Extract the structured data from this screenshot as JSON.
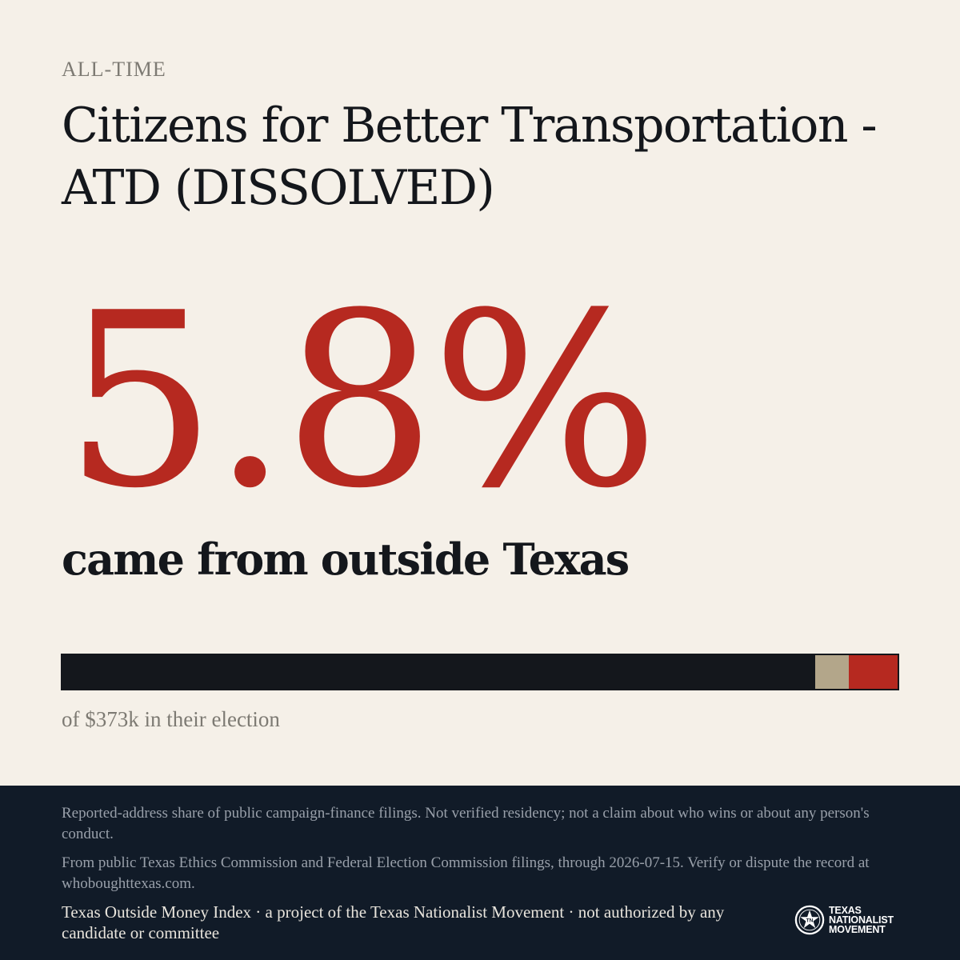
{
  "header": {
    "kicker": "ALL-TIME",
    "title": "Citizens for Better Transportation - ATD (DISSOLVED)"
  },
  "stat": {
    "value": "5.8%",
    "subtitle": "came from outside Texas"
  },
  "bar": {
    "segments": [
      {
        "share": 0.901,
        "color": "#14171c"
      },
      {
        "share": 0.041,
        "color": "#b3a68a"
      },
      {
        "share": 0.058,
        "color": "#b62920"
      }
    ]
  },
  "caption": "of $373k in their election",
  "footer": {
    "disclaimer": "Reported-address share of public campaign-finance filings. Not verified residency; not a claim about who wins or about any person's conduct.",
    "source": "From public Texas Ethics Commission and Federal Election Commission filings, through 2026-07-15. Verify or dispute the record at whoboughttexas.com.",
    "credit": "Texas Outside Money Index · a project of the Texas Nationalist Movement · not authorized by any candidate or committee",
    "logo": {
      "line1": "TEXAS",
      "line2": "NATIONALIST",
      "line3": "MOVEMENT",
      "icon": "star-seal-icon"
    }
  },
  "colors": {
    "background": "#f5f0e8",
    "accent": "#b62920",
    "ink": "#14171c",
    "footer": "#111b28"
  }
}
